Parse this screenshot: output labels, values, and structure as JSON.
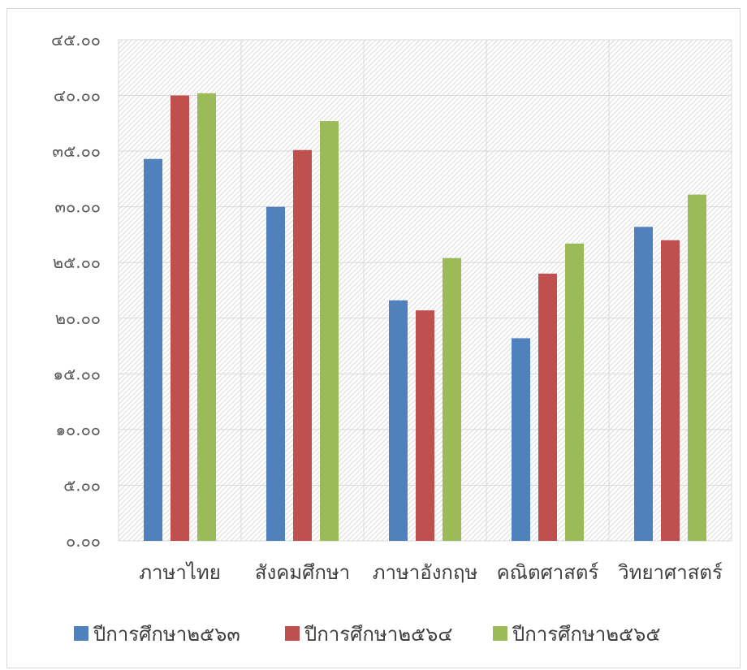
{
  "chart_data": {
    "type": "bar",
    "categories": [
      "ภาษาไทย",
      "สังคมศึกษา",
      "ภาษาอังกฤษ",
      "คณิตศาสตร์",
      "วิทยาศาสตร์"
    ],
    "series": [
      {
        "name": "ปีการศึกษา๒๕๖๓",
        "color": "#4f81bd",
        "values": [
          34.3,
          30.0,
          21.6,
          18.2,
          28.2
        ]
      },
      {
        "name": "ปีการศึกษา๒๕๖๔",
        "color": "#c0504d",
        "values": [
          40.0,
          35.1,
          20.7,
          24.0,
          27.0
        ]
      },
      {
        "name": "ปีการศึกษา๒๕๖๕",
        "color": "#9bbb59",
        "values": [
          40.2,
          37.7,
          25.4,
          26.7,
          31.1
        ]
      }
    ],
    "y_tick_labels": [
      "๐.๐๐",
      "๕.๐๐",
      "๑๐.๐๐",
      "๑๕.๐๐",
      "๒๐.๐๐",
      "๒๕.๐๐",
      "๓๐.๐๐",
      "๓๕.๐๐",
      "๔๐.๐๐",
      "๔๕.๐๐"
    ],
    "ylim": [
      0,
      45
    ],
    "y_step": 5,
    "grid": true,
    "legend_position": "bottom"
  }
}
